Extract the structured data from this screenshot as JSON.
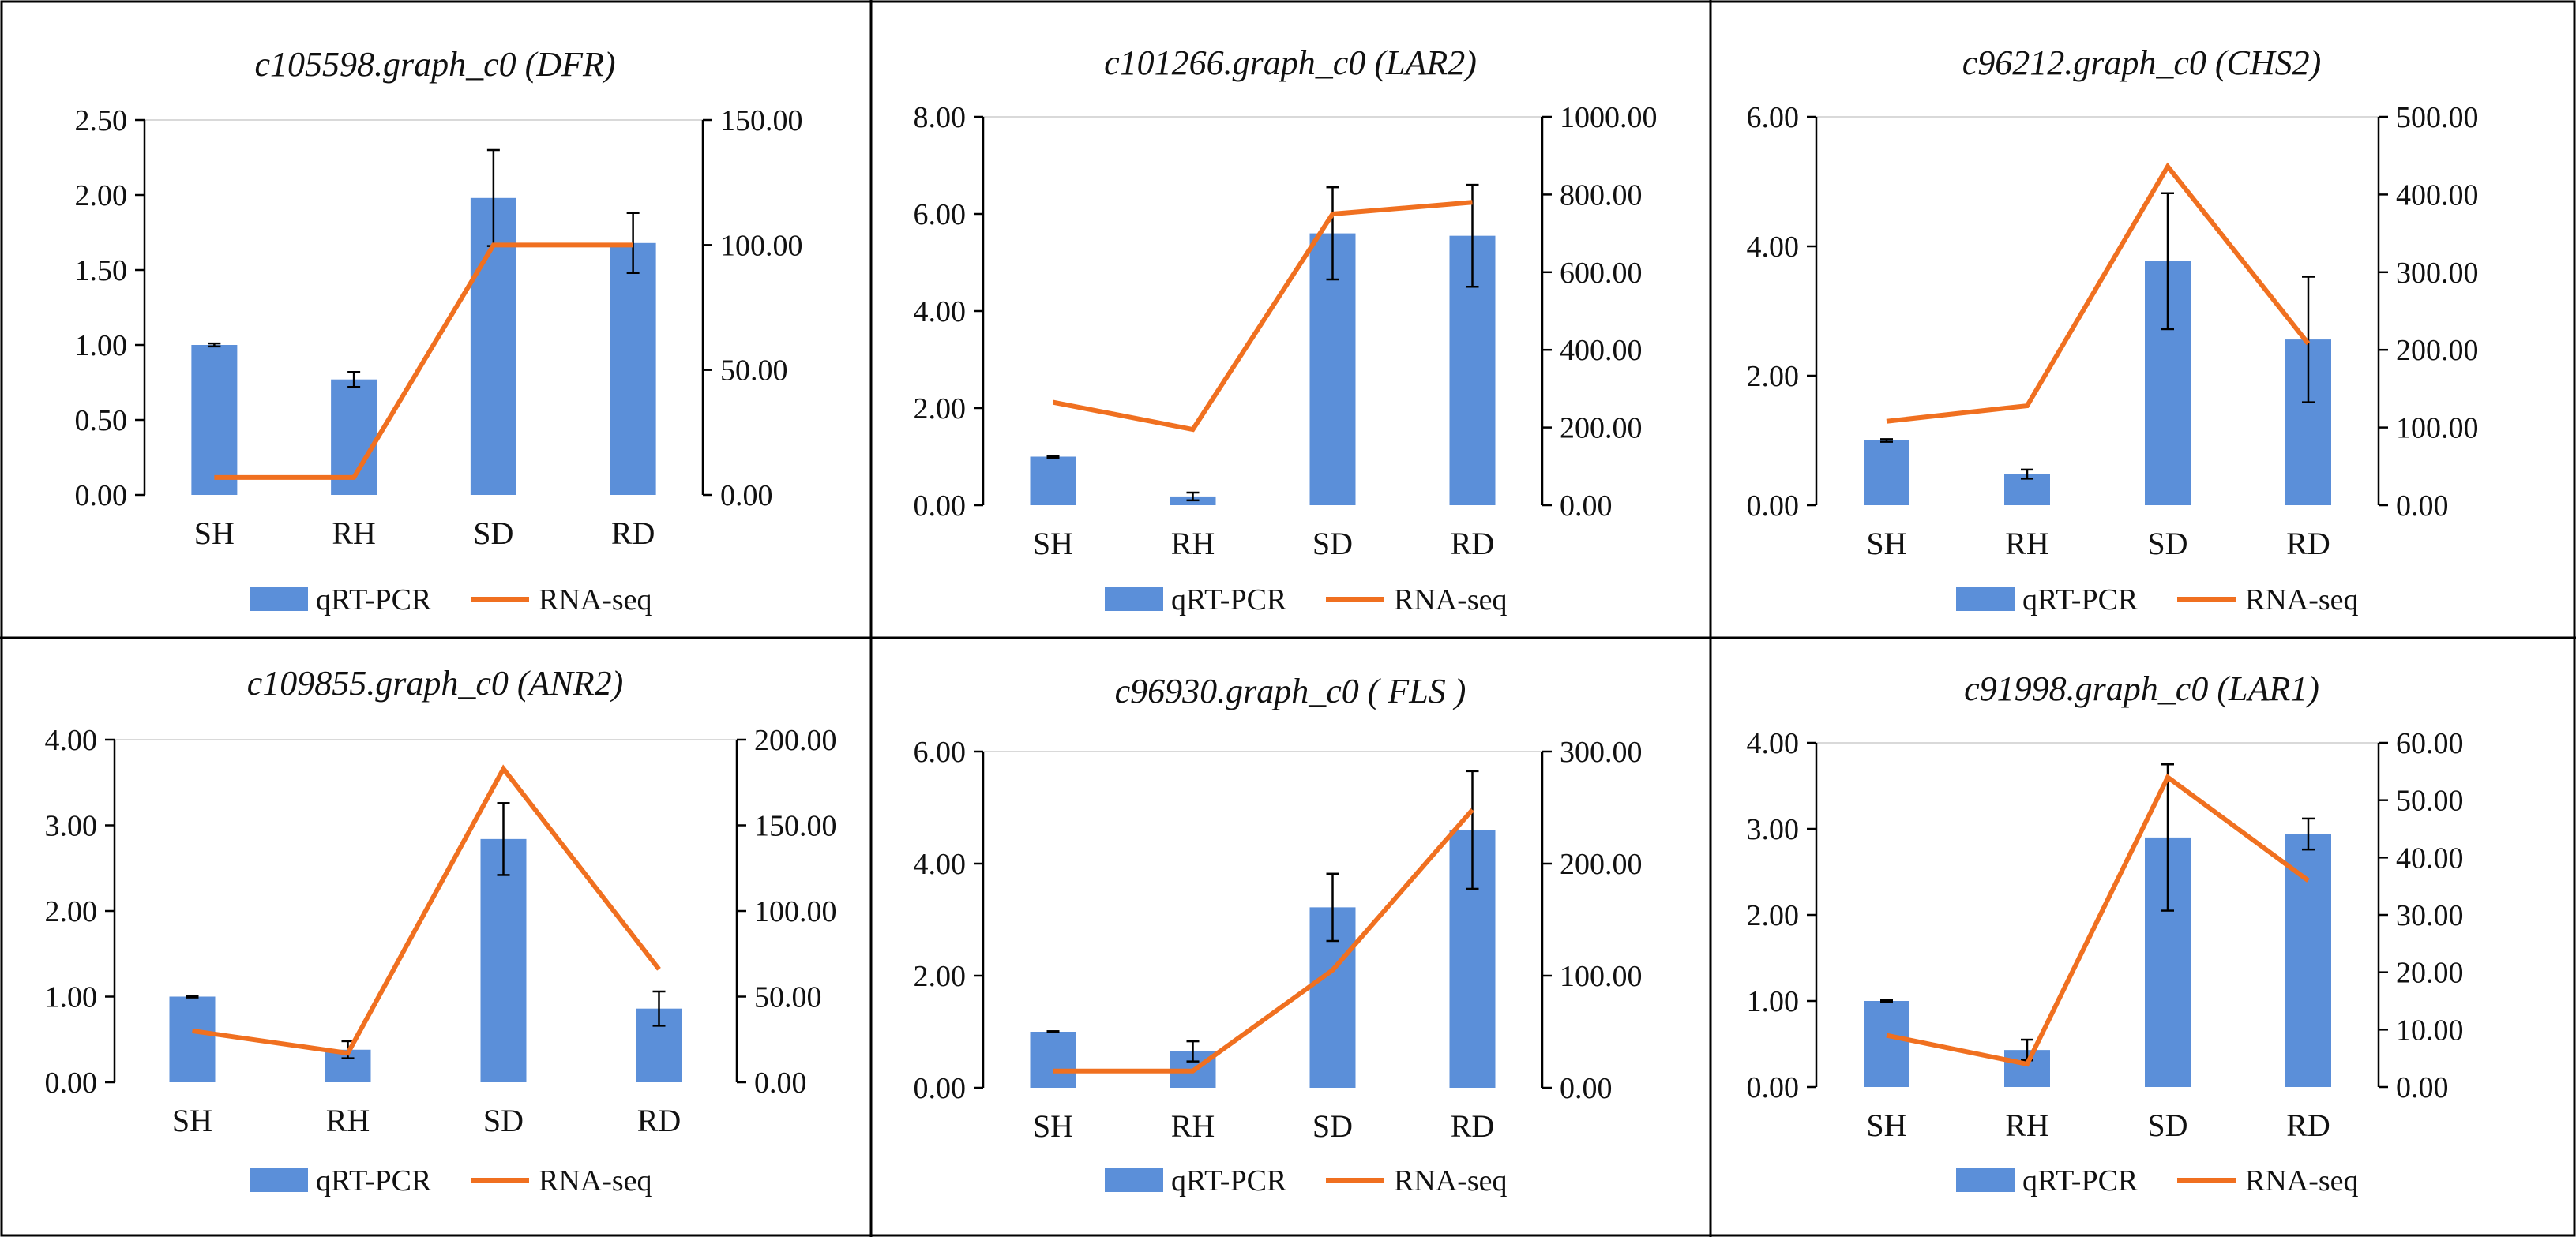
{
  "figure": {
    "colors": {
      "bar": "#5B8FD9",
      "line": "#F07020",
      "axis": "#000000",
      "grid": "#d9d9d9",
      "border": "#000000"
    },
    "legend": {
      "bar_label": "qRT-PCR",
      "line_label": "RNA-seq"
    }
  },
  "chart_data": [
    {
      "type": "bar+line",
      "title": "c105598.graph_c0 (DFR)",
      "categories": [
        "SH",
        "RH",
        "SD",
        "RD"
      ],
      "left_axis": {
        "min": 0,
        "max": 2.5,
        "step": 0.5,
        "ticks": [
          "0.00",
          "0.50",
          "1.00",
          "1.50",
          "2.00",
          "2.50"
        ]
      },
      "right_axis": {
        "min": 0,
        "max": 150,
        "step": 50,
        "ticks": [
          "0.00",
          "50.00",
          "100.00",
          "150.00"
        ]
      },
      "series": [
        {
          "name": "qRT-PCR",
          "kind": "bar",
          "axis": "left",
          "values": [
            1.0,
            0.77,
            1.98,
            1.68
          ],
          "errors": [
            0.01,
            0.05,
            0.32,
            0.2
          ]
        },
        {
          "name": "RNA-seq",
          "kind": "line",
          "axis": "right",
          "values": [
            7,
            7,
            100,
            100
          ]
        }
      ]
    },
    {
      "type": "bar+line",
      "title": "c101266.graph_c0 (LAR2)",
      "categories": [
        "SH",
        "RH",
        "SD",
        "RD"
      ],
      "left_axis": {
        "min": 0,
        "max": 8,
        "step": 2,
        "ticks": [
          "0.00",
          "2.00",
          "4.00",
          "6.00",
          "8.00"
        ]
      },
      "right_axis": {
        "min": 0,
        "max": 1000,
        "step": 200,
        "ticks": [
          "0.00",
          "200.00",
          "400.00",
          "600.00",
          "800.00",
          "1000.00"
        ]
      },
      "series": [
        {
          "name": "qRT-PCR",
          "kind": "bar",
          "axis": "left",
          "values": [
            1.0,
            0.18,
            5.6,
            5.55
          ],
          "errors": [
            0.02,
            0.08,
            0.95,
            1.05
          ]
        },
        {
          "name": "RNA-seq",
          "kind": "line",
          "axis": "right",
          "values": [
            265,
            195,
            750,
            780
          ]
        }
      ]
    },
    {
      "type": "bar+line",
      "title": "c96212.graph_c0 (CHS2)",
      "categories": [
        "SH",
        "RH",
        "SD",
        "RD"
      ],
      "left_axis": {
        "min": 0,
        "max": 6,
        "step": 2,
        "ticks": [
          "0.00",
          "2.00",
          "4.00",
          "6.00"
        ]
      },
      "right_axis": {
        "min": 0,
        "max": 500,
        "step": 100,
        "ticks": [
          "0.00",
          "100.00",
          "200.00",
          "300.00",
          "400.00",
          "500.00"
        ]
      },
      "series": [
        {
          "name": "qRT-PCR",
          "kind": "bar",
          "axis": "left",
          "values": [
            1.0,
            0.48,
            3.77,
            2.56
          ],
          "errors": [
            0.02,
            0.07,
            1.05,
            0.97
          ]
        },
        {
          "name": "RNA-seq",
          "kind": "line",
          "axis": "right",
          "values": [
            108,
            128,
            436,
            208
          ]
        }
      ]
    },
    {
      "type": "bar+line",
      "title": "c109855.graph_c0 (ANR2)",
      "categories": [
        "SH",
        "RH",
        "SD",
        "RD"
      ],
      "left_axis": {
        "min": 0,
        "max": 4,
        "step": 1,
        "ticks": [
          "0.00",
          "1.00",
          "2.00",
          "3.00",
          "4.00"
        ]
      },
      "right_axis": {
        "min": 0,
        "max": 200,
        "step": 50,
        "ticks": [
          "0.00",
          "50.00",
          "100.00",
          "150.00",
          "200.00"
        ]
      },
      "series": [
        {
          "name": "qRT-PCR",
          "kind": "bar",
          "axis": "left",
          "values": [
            1.0,
            0.38,
            2.84,
            0.86
          ],
          "errors": [
            0.01,
            0.1,
            0.42,
            0.2
          ]
        },
        {
          "name": "RNA-seq",
          "kind": "line",
          "axis": "right",
          "values": [
            30,
            17,
            183,
            66
          ]
        }
      ]
    },
    {
      "type": "bar+line",
      "title": "c96930.graph_c0 ( FLS )",
      "categories": [
        "SH",
        "RH",
        "SD",
        "RD"
      ],
      "left_axis": {
        "min": 0,
        "max": 6,
        "step": 2,
        "ticks": [
          "0.00",
          "2.00",
          "4.00",
          "6.00"
        ]
      },
      "right_axis": {
        "min": 0,
        "max": 300,
        "step": 100,
        "ticks": [
          "0.00",
          "100.00",
          "200.00",
          "300.00"
        ]
      },
      "series": [
        {
          "name": "qRT-PCR",
          "kind": "bar",
          "axis": "left",
          "values": [
            1.0,
            0.65,
            3.22,
            4.6
          ],
          "errors": [
            0.01,
            0.18,
            0.6,
            1.05
          ]
        },
        {
          "name": "RNA-seq",
          "kind": "line",
          "axis": "right",
          "values": [
            15,
            15,
            105,
            248
          ]
        }
      ]
    },
    {
      "type": "bar+line",
      "title": "c91998.graph_c0 (LAR1)",
      "categories": [
        "SH",
        "RH",
        "SD",
        "RD"
      ],
      "left_axis": {
        "min": 0,
        "max": 4,
        "step": 1,
        "ticks": [
          "0.00",
          "1.00",
          "2.00",
          "3.00",
          "4.00"
        ]
      },
      "right_axis": {
        "min": 0,
        "max": 60,
        "step": 10,
        "ticks": [
          "0.00",
          "10.00",
          "20.00",
          "30.00",
          "40.00",
          "50.00",
          "60.00"
        ]
      },
      "series": [
        {
          "name": "qRT-PCR",
          "kind": "bar",
          "axis": "left",
          "values": [
            1.0,
            0.43,
            2.9,
            2.94
          ],
          "errors": [
            0.01,
            0.12,
            0.85,
            0.18
          ]
        },
        {
          "name": "RNA-seq",
          "kind": "line",
          "axis": "right",
          "values": [
            9,
            4,
            54,
            36
          ]
        }
      ]
    }
  ]
}
